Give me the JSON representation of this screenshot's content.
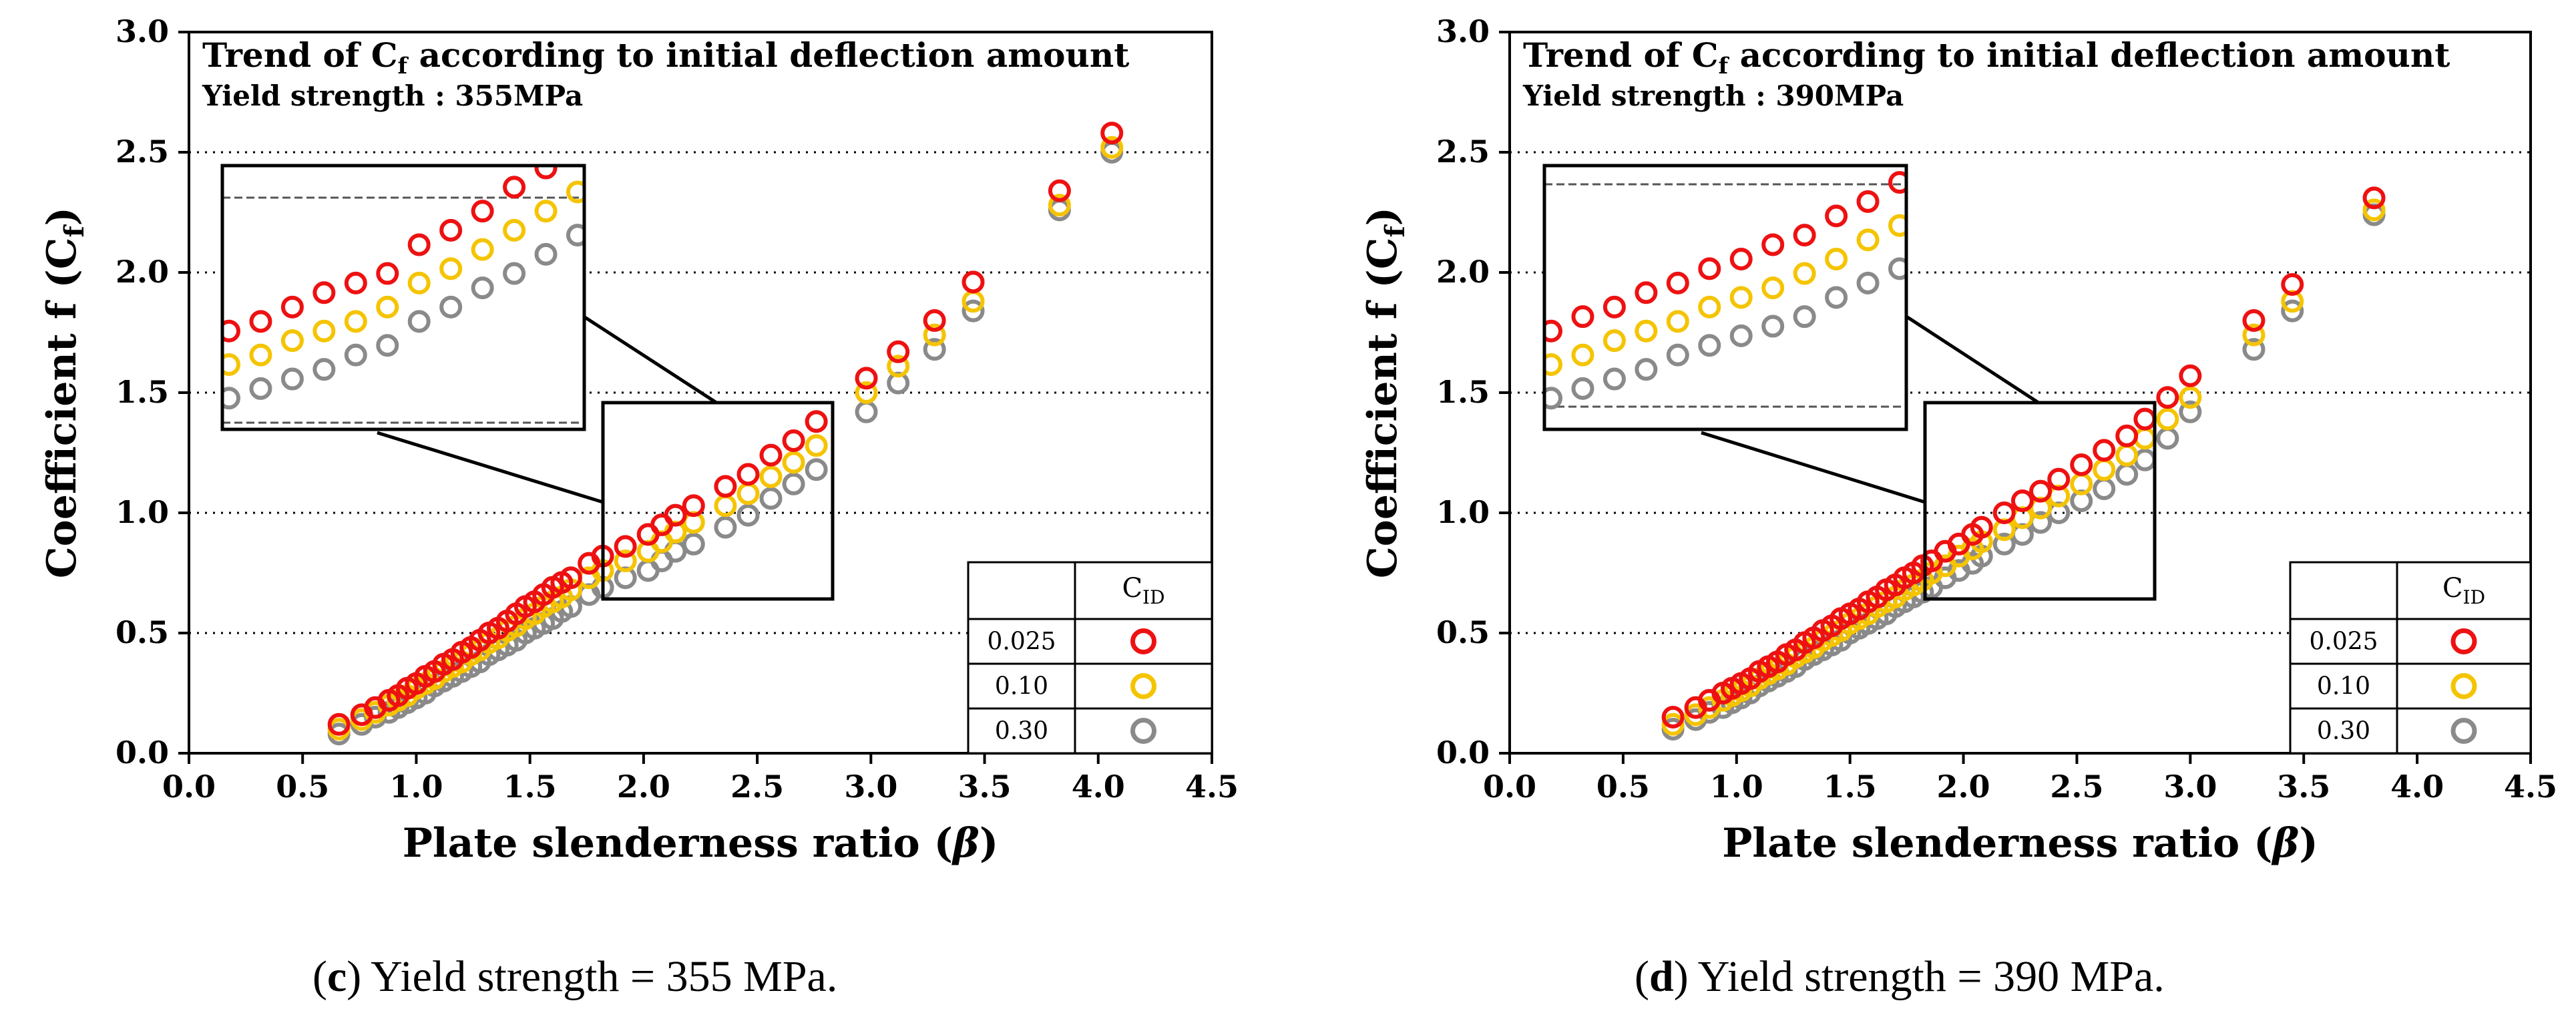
{
  "colors": {
    "red": "#ee1111",
    "yellow": "#f5c400",
    "gray": "#8a8a8a",
    "axis": "#000000",
    "grid": "#000000"
  },
  "charts": [
    {
      "id": "c",
      "caption_label": "c",
      "caption_text": ") Yield strength = 355 MPa.",
      "title_line1_prefix": "Trend of C",
      "title_line1_sub": "f",
      "title_line1_suffix": " according to initial deflection amount",
      "title_line2": "Yield strength : 355MPa",
      "xlabel_text": "Plate slenderness ratio (",
      "xlabel_symbol": "β",
      "xlabel_close": ")",
      "ylabel_text": "Coefficient f (C",
      "ylabel_sub": "f",
      "ylabel_close": ")",
      "legend": {
        "header": "C",
        "header_sub": "ID",
        "entries": [
          "0.025",
          "0.10",
          "0.30"
        ]
      }
    },
    {
      "id": "d",
      "caption_label": "d",
      "caption_text": ") Yield strength = 390 MPa.",
      "title_line1_prefix": "Trend of C",
      "title_line1_sub": "f",
      "title_line1_suffix": " according to initial deflection amount",
      "title_line2": "Yield strength : 390MPa",
      "xlabel_text": "Plate slenderness ratio (",
      "xlabel_symbol": "β",
      "xlabel_close": ")",
      "ylabel_text": "Coefficient f (C",
      "ylabel_sub": "f",
      "ylabel_close": ")",
      "legend": {
        "header": "C",
        "header_sub": "ID",
        "entries": [
          "0.025",
          "0.10",
          "0.30"
        ]
      }
    }
  ],
  "chart_data": [
    {
      "type": "scatter",
      "title": "Trend of Cf according to initial deflection amount",
      "subtitle": "Yield strength : 355MPa",
      "xlabel": "Plate slenderness ratio (β)",
      "ylabel": "Coefficient f (Cf)",
      "xlim": [
        0.0,
        4.5
      ],
      "ylim": [
        0.0,
        3.0
      ],
      "xticks": [
        "0.0",
        "0.5",
        "1.0",
        "1.5",
        "2.0",
        "2.5",
        "3.0",
        "3.5",
        "4.0",
        "4.5"
      ],
      "yticks": [
        "0.0",
        "0.5",
        "1.0",
        "1.5",
        "2.0",
        "2.5",
        "3.0"
      ],
      "grid": "horizontal dotted",
      "legend_title": "CID",
      "legend_position": "bottom-right",
      "x": [
        0.66,
        0.76,
        0.82,
        0.88,
        0.92,
        0.96,
        1.0,
        1.04,
        1.08,
        1.12,
        1.16,
        1.2,
        1.24,
        1.28,
        1.32,
        1.36,
        1.4,
        1.44,
        1.48,
        1.52,
        1.56,
        1.6,
        1.64,
        1.68,
        1.76,
        1.82,
        1.92,
        2.02,
        2.08,
        2.14,
        2.22,
        2.36,
        2.46,
        2.56,
        2.66,
        2.76,
        2.98,
        3.12,
        3.28,
        3.45,
        3.83,
        4.06
      ],
      "series": [
        {
          "name": "0.025",
          "color": "red",
          "values": [
            0.12,
            0.16,
            0.19,
            0.22,
            0.24,
            0.27,
            0.29,
            0.32,
            0.34,
            0.37,
            0.39,
            0.42,
            0.44,
            0.47,
            0.5,
            0.52,
            0.55,
            0.58,
            0.61,
            0.63,
            0.66,
            0.69,
            0.71,
            0.73,
            0.79,
            0.82,
            0.86,
            0.91,
            0.95,
            0.99,
            1.03,
            1.11,
            1.16,
            1.24,
            1.3,
            1.38,
            1.56,
            1.67,
            1.8,
            1.96,
            2.34,
            2.58
          ]
        },
        {
          "name": "0.10",
          "color": "yellow",
          "values": [
            0.1,
            0.14,
            0.17,
            0.2,
            0.22,
            0.24,
            0.27,
            0.29,
            0.31,
            0.34,
            0.36,
            0.38,
            0.41,
            0.43,
            0.46,
            0.48,
            0.51,
            0.53,
            0.56,
            0.58,
            0.61,
            0.63,
            0.65,
            0.68,
            0.73,
            0.76,
            0.8,
            0.84,
            0.88,
            0.92,
            0.96,
            1.03,
            1.08,
            1.15,
            1.21,
            1.28,
            1.5,
            1.61,
            1.74,
            1.88,
            2.28,
            2.52
          ]
        },
        {
          "name": "0.30",
          "color": "gray",
          "values": [
            0.08,
            0.12,
            0.15,
            0.17,
            0.19,
            0.21,
            0.23,
            0.25,
            0.28,
            0.3,
            0.32,
            0.34,
            0.36,
            0.38,
            0.41,
            0.43,
            0.45,
            0.47,
            0.5,
            0.52,
            0.54,
            0.56,
            0.59,
            0.61,
            0.66,
            0.69,
            0.73,
            0.76,
            0.8,
            0.84,
            0.87,
            0.94,
            0.99,
            1.06,
            1.12,
            1.18,
            1.42,
            1.54,
            1.68,
            1.84,
            2.26,
            2.5
          ]
        }
      ]
    },
    {
      "type": "scatter",
      "title": "Trend of Cf according to initial deflection amount",
      "subtitle": "Yield strength : 390MPa",
      "xlabel": "Plate slenderness ratio (β)",
      "ylabel": "Coefficient f (Cf)",
      "xlim": [
        0.0,
        4.5
      ],
      "ylim": [
        0.0,
        3.0
      ],
      "xticks": [
        "0.0",
        "0.5",
        "1.0",
        "1.5",
        "2.0",
        "2.5",
        "3.0",
        "3.5",
        "4.0",
        "4.5"
      ],
      "yticks": [
        "0.0",
        "0.5",
        "1.0",
        "1.5",
        "2.0",
        "2.5",
        "3.0"
      ],
      "grid": "horizontal dotted",
      "legend_title": "CID",
      "legend_position": "bottom-right",
      "x": [
        0.72,
        0.82,
        0.88,
        0.94,
        0.98,
        1.02,
        1.06,
        1.1,
        1.14,
        1.18,
        1.22,
        1.26,
        1.3,
        1.34,
        1.38,
        1.42,
        1.46,
        1.5,
        1.54,
        1.58,
        1.62,
        1.66,
        1.7,
        1.74,
        1.78,
        1.82,
        1.86,
        1.92,
        1.98,
        2.04,
        2.08,
        2.18,
        2.26,
        2.34,
        2.42,
        2.52,
        2.62,
        2.72,
        2.8,
        2.9,
        3.0,
        3.28,
        3.45,
        3.81
      ],
      "series": [
        {
          "name": "0.025",
          "color": "red",
          "values": [
            0.15,
            0.19,
            0.22,
            0.25,
            0.27,
            0.29,
            0.31,
            0.34,
            0.36,
            0.38,
            0.41,
            0.43,
            0.46,
            0.48,
            0.51,
            0.53,
            0.56,
            0.58,
            0.6,
            0.63,
            0.65,
            0.68,
            0.7,
            0.73,
            0.75,
            0.78,
            0.8,
            0.84,
            0.87,
            0.91,
            0.94,
            1.0,
            1.05,
            1.09,
            1.14,
            1.2,
            1.26,
            1.32,
            1.39,
            1.48,
            1.57,
            1.8,
            1.95,
            2.31
          ]
        },
        {
          "name": "0.10",
          "color": "yellow",
          "values": [
            0.12,
            0.16,
            0.19,
            0.22,
            0.24,
            0.26,
            0.28,
            0.31,
            0.33,
            0.35,
            0.37,
            0.4,
            0.42,
            0.44,
            0.47,
            0.49,
            0.51,
            0.54,
            0.56,
            0.58,
            0.61,
            0.63,
            0.65,
            0.68,
            0.7,
            0.72,
            0.75,
            0.78,
            0.82,
            0.85,
            0.88,
            0.93,
            0.98,
            1.02,
            1.07,
            1.12,
            1.18,
            1.24,
            1.31,
            1.39,
            1.48,
            1.74,
            1.88,
            2.26
          ]
        },
        {
          "name": "0.30",
          "color": "gray",
          "values": [
            0.1,
            0.14,
            0.17,
            0.19,
            0.21,
            0.23,
            0.25,
            0.28,
            0.3,
            0.32,
            0.34,
            0.36,
            0.39,
            0.41,
            0.43,
            0.45,
            0.47,
            0.5,
            0.52,
            0.54,
            0.56,
            0.58,
            0.61,
            0.63,
            0.65,
            0.67,
            0.69,
            0.73,
            0.76,
            0.79,
            0.82,
            0.87,
            0.91,
            0.96,
            1.0,
            1.05,
            1.1,
            1.16,
            1.22,
            1.31,
            1.42,
            1.68,
            1.84,
            2.24
          ]
        }
      ]
    }
  ]
}
